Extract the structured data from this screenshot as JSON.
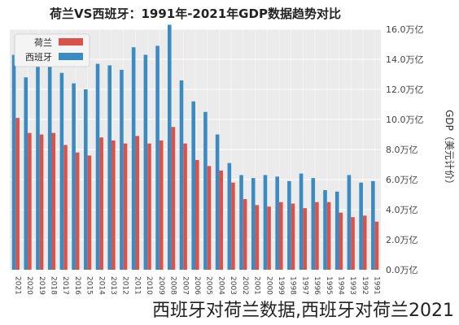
{
  "caption": "西班牙对荷兰数据,西班牙对荷兰2021",
  "colors": {
    "netherlands": "#d9534a",
    "spain": "#3b8bc2",
    "plot_bg": "#ebebeb",
    "grid": "#ffffff"
  },
  "chart_data": {
    "type": "bar",
    "title": "荷兰VS西班牙：1991年-2021年GDP数据趋势对比",
    "ylabel": "GDP（美元计价）",
    "xlabel": "",
    "ylim": [
      0,
      16
    ],
    "y_ticks": [
      {
        "value": 0,
        "label": "0.0万亿"
      },
      {
        "value": 2,
        "label": "2.0万亿"
      },
      {
        "value": 4,
        "label": "4.0万亿"
      },
      {
        "value": 6,
        "label": "6.0万亿"
      },
      {
        "value": 8,
        "label": "8.0万亿"
      },
      {
        "value": 10,
        "label": "10.0万亿"
      },
      {
        "value": 12,
        "label": "12.0万亿"
      },
      {
        "value": 14,
        "label": "14.0万亿"
      },
      {
        "value": 16,
        "label": "16.0万亿"
      }
    ],
    "grid": true,
    "legend_position": "top-left",
    "categories": [
      "2021",
      "2020",
      "2019",
      "2018",
      "2017",
      "2016",
      "2015",
      "2014",
      "2013",
      "2012",
      "2011",
      "2010",
      "2009",
      "2008",
      "2007",
      "2006",
      "2005",
      "2004",
      "2003",
      "2002",
      "2001",
      "2000",
      "1999",
      "1998",
      "1997",
      "1996",
      "1995",
      "1994",
      "1993",
      "1992",
      "1991"
    ],
    "series": [
      {
        "name": "荷兰",
        "values": [
          10.1,
          9.1,
          9.0,
          9.1,
          8.3,
          7.8,
          7.6,
          8.8,
          8.6,
          8.4,
          8.9,
          8.4,
          8.6,
          9.5,
          8.4,
          7.3,
          6.9,
          6.6,
          5.8,
          4.7,
          4.3,
          4.2,
          4.5,
          4.4,
          4.1,
          4.5,
          4.5,
          3.8,
          3.5,
          3.6,
          3.2
        ]
      },
      {
        "name": "西班牙",
        "values": [
          14.3,
          12.8,
          13.9,
          14.2,
          13.1,
          12.4,
          12.0,
          13.7,
          13.6,
          13.3,
          14.8,
          14.3,
          14.9,
          16.3,
          12.6,
          11.2,
          10.5,
          9.0,
          7.1,
          6.3,
          6.1,
          6.3,
          6.2,
          5.9,
          6.4,
          6.1,
          5.3,
          5.2,
          6.3,
          5.8,
          5.9
        ]
      }
    ]
  }
}
